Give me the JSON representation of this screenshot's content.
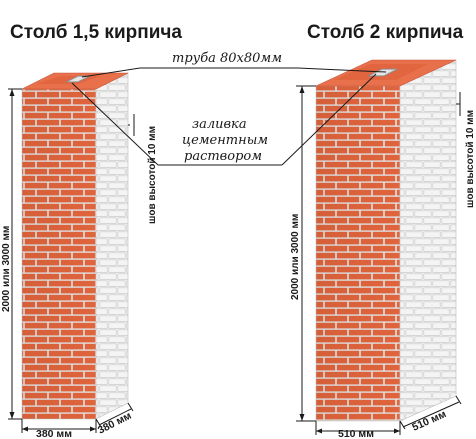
{
  "pillars": [
    {
      "title": "Столб 1,5 кирпича",
      "height_label": "2000 или 3000 мм",
      "seam_label": "шов высотой 10 мм",
      "width_label": "380 мм",
      "depth_label": "380 мм"
    },
    {
      "title": "Столб 2 кирпича",
      "height_label": "2000 или 3000 мм",
      "seam_label": "шов высотой 10 мм",
      "width_label": "510 мм",
      "depth_label": "510 мм"
    }
  ],
  "callouts": {
    "pipe": "труба 80х80мм",
    "fill_line1": "заливка",
    "fill_line2": "цементным",
    "fill_line3": "раствором"
  },
  "colors": {
    "brick_front": "#e0643c",
    "brick_side": "#ffffff",
    "brick_top": "#e8704a",
    "mortar": "#f3f3f3",
    "pipe": "#c8c8c8"
  }
}
